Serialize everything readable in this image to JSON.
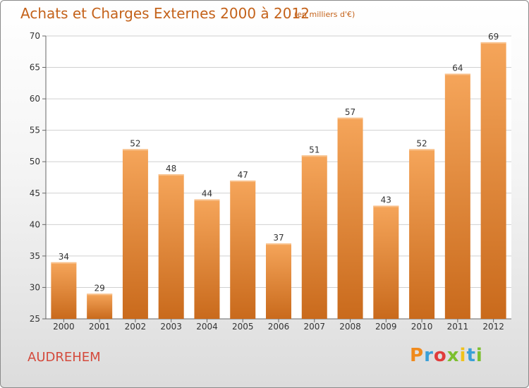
{
  "chart_data": {
    "type": "bar",
    "title": "Achats et Charges Externes 2000 à 2012",
    "subtitle": "(en milliers d'€)",
    "categories": [
      "2000",
      "2001",
      "2002",
      "2003",
      "2004",
      "2005",
      "2006",
      "2007",
      "2008",
      "2009",
      "2010",
      "2011",
      "2012"
    ],
    "values": [
      34,
      29,
      52,
      48,
      44,
      47,
      37,
      51,
      57,
      43,
      52,
      64,
      69
    ],
    "ylim": [
      25,
      70
    ],
    "yticks": [
      25,
      30,
      35,
      40,
      45,
      50,
      55,
      60,
      65,
      70
    ],
    "grid": true,
    "colors": {
      "bar_top": "#f5a55a",
      "bar_bottom": "#c96a1c",
      "label": "#333333",
      "grid": "#d0d0d0"
    }
  },
  "footer": {
    "place": "AUDREHEM",
    "logo_text": "Proxiti",
    "logo_colors": [
      "#f08a1c",
      "#3aa0d8",
      "#e03c3c",
      "#7cbf2f",
      "#f0c21c",
      "#3aa0d8",
      "#7cbf2f"
    ]
  }
}
